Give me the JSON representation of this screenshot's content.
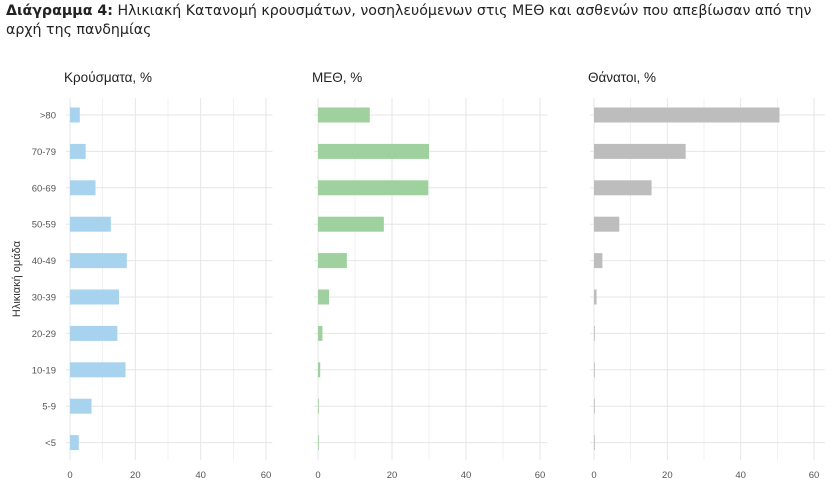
{
  "figure": {
    "label": "Διάγραμμα 4:",
    "title": "Ηλικιακή Κατανομή κρουσμάτων, νοσηλευόμενων στις ΜΕΘ και ασθενών που απεβίωσαν από την αρχή της πανδημίας"
  },
  "colors": {
    "cases": "#a8d3ee",
    "icu": "#9fd19e",
    "deaths": "#bdbdbd",
    "grid": "#e6e6e6"
  },
  "chart_data": {
    "type": "bar",
    "orientation": "horizontal",
    "ylabel": "Ηλικιακή ομάδα",
    "categories": [
      ">80",
      "70-79",
      "60-69",
      "50-59",
      "40-49",
      "30-39",
      "20-29",
      "10-19",
      "5-9",
      "<5"
    ],
    "x_ticks": [
      0,
      20,
      40,
      60
    ],
    "grid": true,
    "panels": [
      {
        "title": "Κρούσματα, %",
        "xlim": [
          0,
          62
        ],
        "values": [
          3.0,
          4.8,
          7.8,
          12.5,
          17.4,
          15.0,
          14.5,
          17.0,
          6.6,
          2.7
        ]
      },
      {
        "title": "ΜΕΘ, %",
        "xlim": [
          0,
          62
        ],
        "values": [
          14.0,
          30.0,
          29.8,
          17.8,
          7.8,
          3.0,
          1.2,
          0.6,
          0.2,
          0.1
        ]
      },
      {
        "title": "Θάνατοι, %",
        "xlim": [
          0,
          63
        ],
        "values": [
          50.6,
          25.0,
          15.7,
          6.9,
          2.3,
          0.7,
          0.2,
          0.1,
          0.0,
          0.1
        ]
      }
    ]
  }
}
